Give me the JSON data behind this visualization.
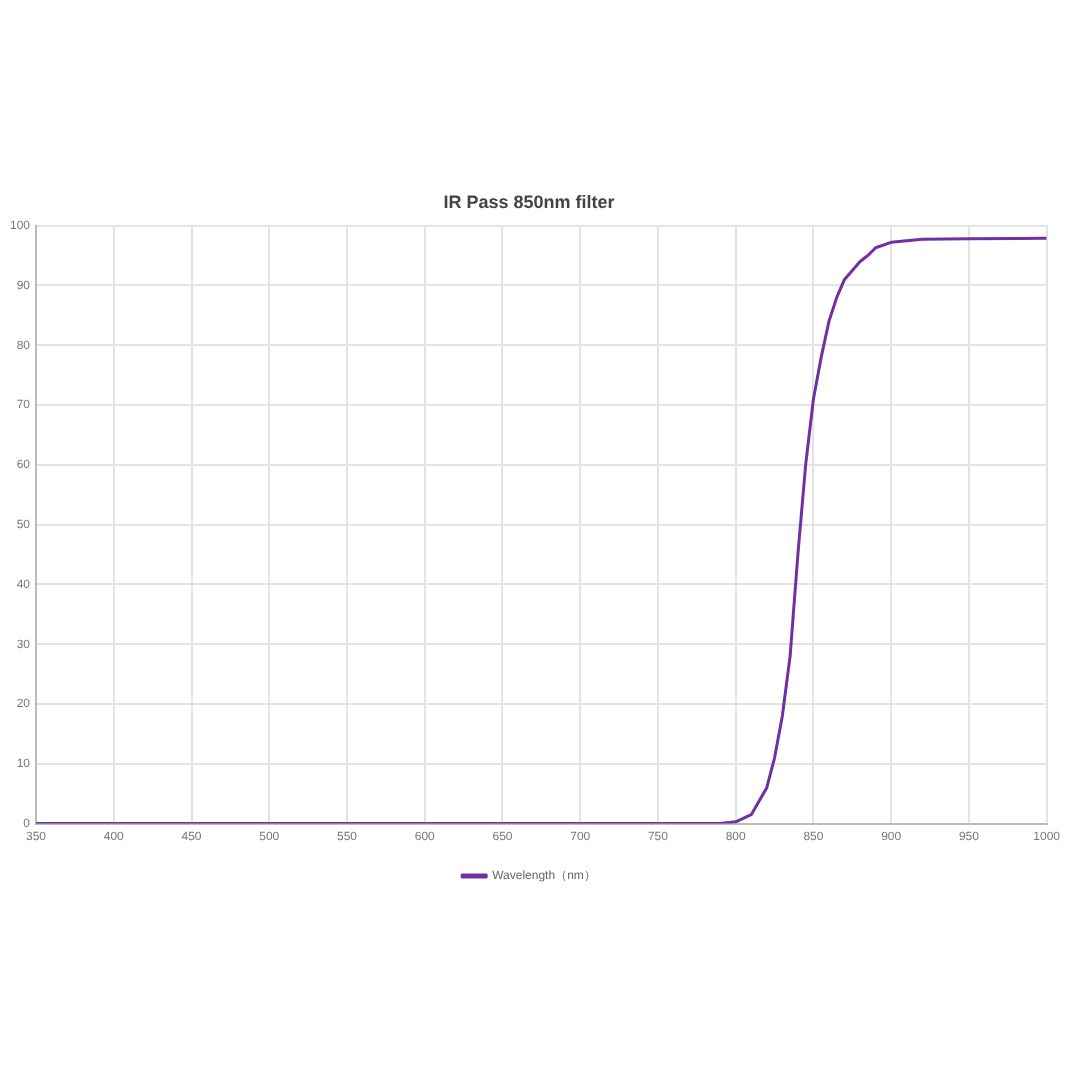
{
  "chart_data": {
    "type": "line",
    "title": "IR Pass 850nm filter",
    "x": [
      350,
      400,
      450,
      500,
      550,
      600,
      650,
      700,
      750,
      790,
      800,
      810,
      820,
      825,
      830,
      835,
      840,
      845,
      850,
      855,
      860,
      865,
      870,
      875,
      880,
      885,
      890,
      900,
      920,
      950,
      1000
    ],
    "series": [
      {
        "name": "Wavelength（nm）",
        "color": "#7030a0",
        "values": [
          0,
          0,
          0,
          0,
          0,
          0,
          0,
          0,
          0,
          0,
          0.3,
          1.5,
          6,
          11,
          18,
          28,
          45,
          60,
          71,
          78,
          84,
          88,
          91,
          92.5,
          94,
          95,
          96.3,
          97.2,
          97.7,
          97.8,
          97.9
        ]
      }
    ],
    "xlim": [
      350,
      1000
    ],
    "xticks": [
      350,
      400,
      450,
      500,
      550,
      600,
      650,
      700,
      750,
      800,
      850,
      900,
      950,
      1000
    ],
    "ylim": [
      0,
      100
    ],
    "yticks": [
      0,
      10,
      20,
      30,
      40,
      50,
      60,
      70,
      80,
      90,
      100
    ],
    "grid": true,
    "legend": "bottom",
    "marker": "none",
    "line_style": "solid"
  }
}
